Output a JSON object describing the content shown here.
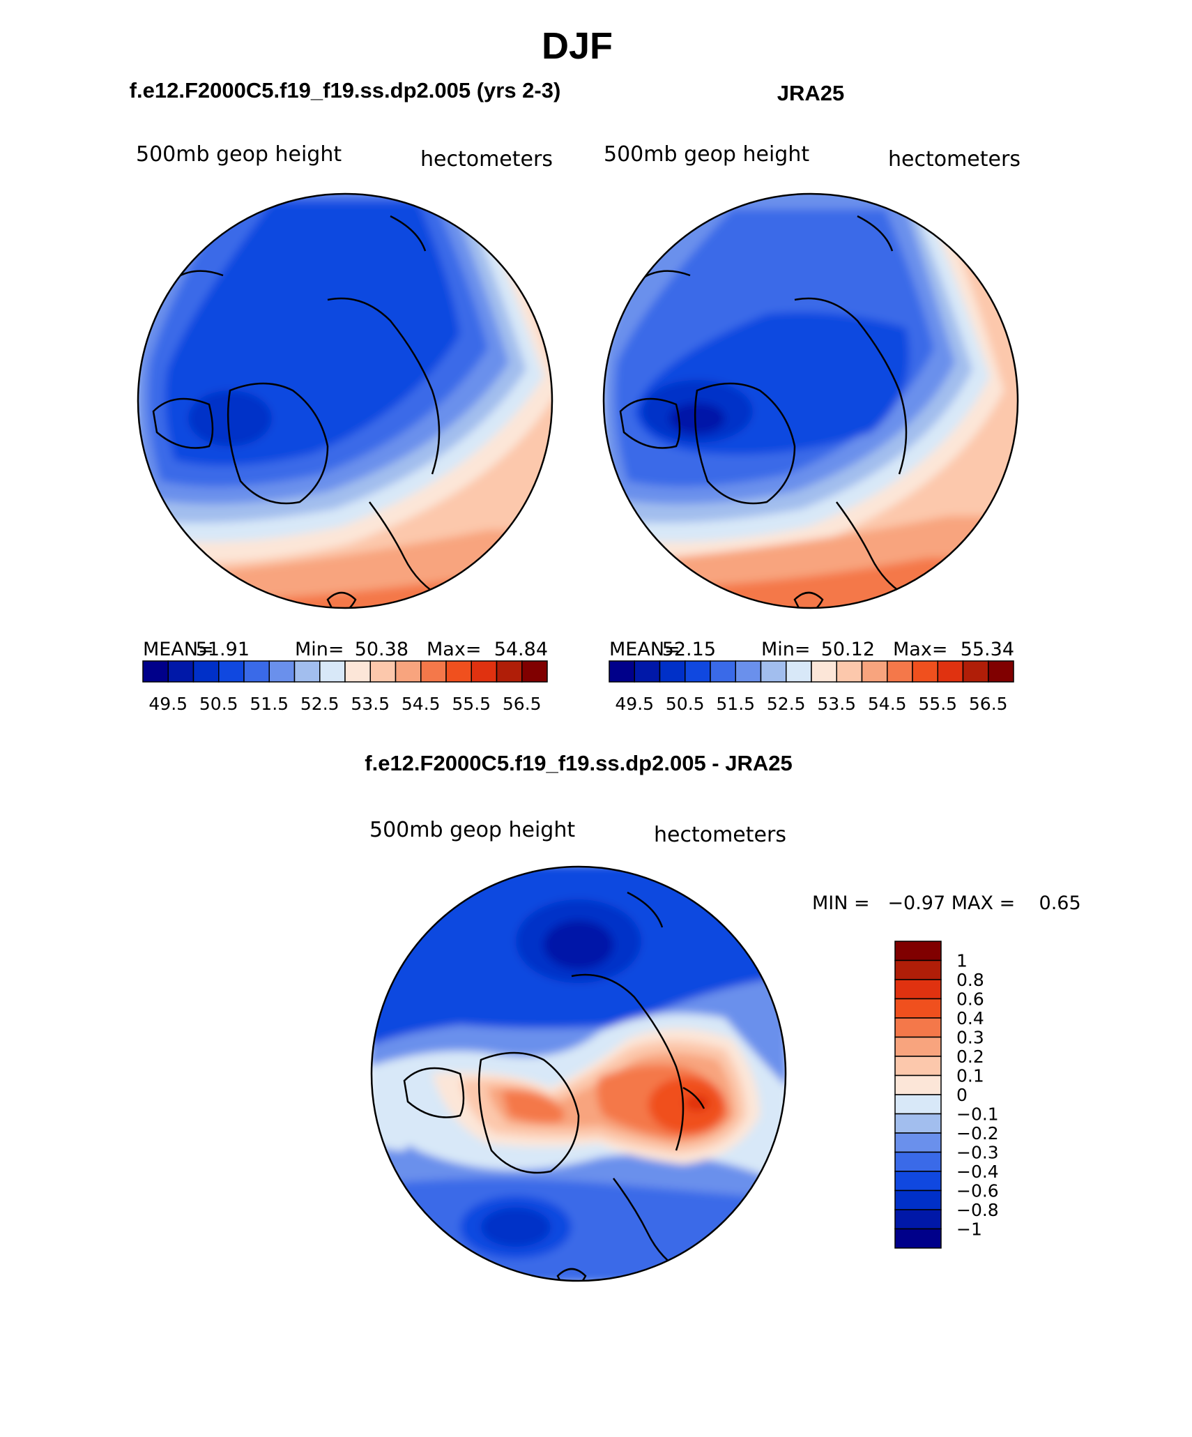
{
  "title": "DJF",
  "panels": [
    {
      "id": "model",
      "header": "f.e12.F2000C5.f19_f19.ss.dp2.005 (yrs 2-3)",
      "left_label": "500mb geop height",
      "right_label": "hectometers",
      "stats": {
        "mean_label": "MEAN=",
        "mean": "51.91",
        "min_label": "Min=",
        "min": "50.38",
        "max_label": "Max=",
        "max": "54.84"
      }
    },
    {
      "id": "obs",
      "header": "JRA25",
      "left_label": "500mb geop height",
      "right_label": "hectometers",
      "stats": {
        "mean_label": "MEAN=",
        "mean": "52.15",
        "min_label": "Min=",
        "min": "50.12",
        "max_label": "Max=",
        "max": "55.34"
      }
    },
    {
      "id": "diff",
      "header": "f.e12.F2000C5.f19_f19.ss.dp2.005 - JRA25",
      "left_label": "500mb geop height",
      "right_label": "hectometers",
      "minmax": "MIN =   −0.97 MAX =    0.65"
    }
  ],
  "colorbar_abs": {
    "colors": [
      "#00008a",
      "#0018a8",
      "#0030c8",
      "#1048e0",
      "#3a6ae8",
      "#6a90ec",
      "#a2beee",
      "#d8e8f8",
      "#fce6d8",
      "#fcc8ac",
      "#f8a47e",
      "#f4784a",
      "#f0501e",
      "#e03210",
      "#b01e08",
      "#800000"
    ],
    "labels": [
      "49.5",
      "50.5",
      "51.5",
      "52.5",
      "53.5",
      "54.5",
      "55.5",
      "56.5"
    ]
  },
  "colorbar_diff": {
    "colors": [
      "#800000",
      "#b01e08",
      "#e03210",
      "#f0501e",
      "#f4784a",
      "#f8a47e",
      "#fcc8ac",
      "#fce6d8",
      "#d8e8f8",
      "#a2beee",
      "#6a90ec",
      "#3a6ae8",
      "#1048e0",
      "#0030c8",
      "#0018a8",
      "#00008a"
    ],
    "labels": [
      "1",
      "0.8",
      "0.6",
      "0.4",
      "0.3",
      "0.2",
      "0.1",
      "0",
      "−0.1",
      "−0.2",
      "−0.3",
      "−0.4",
      "−0.6",
      "−0.8",
      "−1"
    ]
  }
}
